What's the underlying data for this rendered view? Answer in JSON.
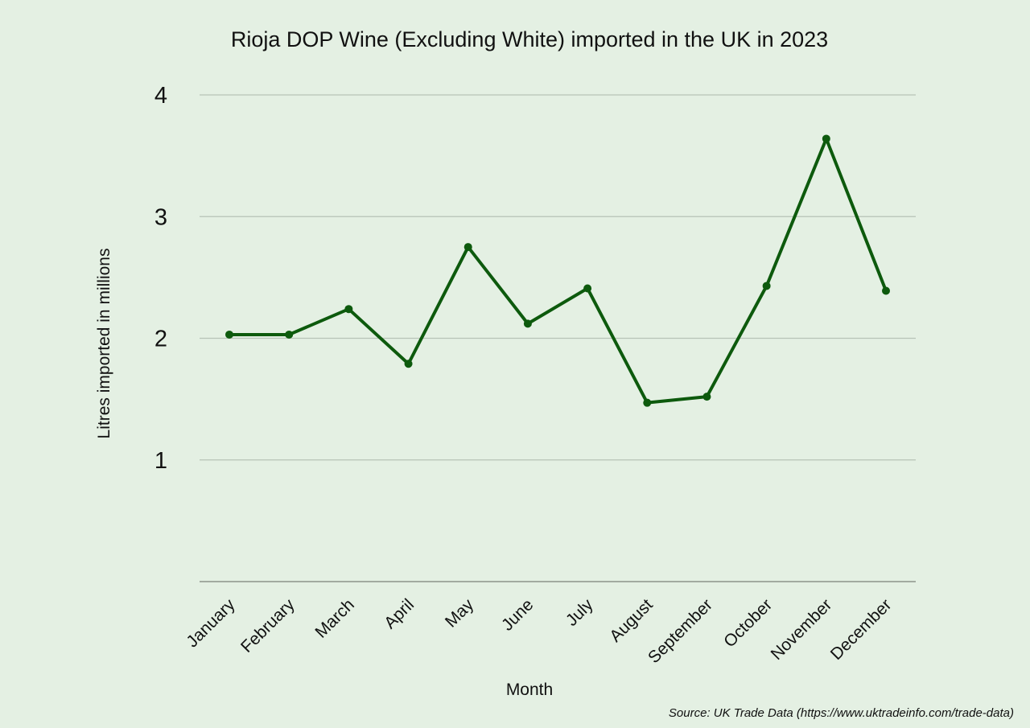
{
  "colors": {
    "background": "#e4f0e3",
    "line": "#0d5a0d",
    "grid": "#b7c3b6",
    "axis": "#8b948a",
    "text": "#111111"
  },
  "source": "Source: UK Trade Data (https://www.uktradeinfo.com/trade-data)",
  "chart_data": {
    "type": "line",
    "title": "Rioja DOP Wine (Excluding White) imported in the UK in 2023",
    "xlabel": "Month",
    "ylabel": "Litres imported in millions",
    "ylim": [
      0,
      4
    ],
    "yticks": [
      1,
      2,
      3,
      4
    ],
    "grid": true,
    "categories": [
      "January",
      "February",
      "March",
      "April",
      "May",
      "June",
      "July",
      "August",
      "September",
      "October",
      "November",
      "December"
    ],
    "series": [
      {
        "values": [
          2.03,
          2.03,
          2.24,
          1.79,
          2.75,
          2.12,
          2.41,
          1.47,
          1.52,
          2.43,
          3.64,
          2.39
        ]
      }
    ]
  }
}
